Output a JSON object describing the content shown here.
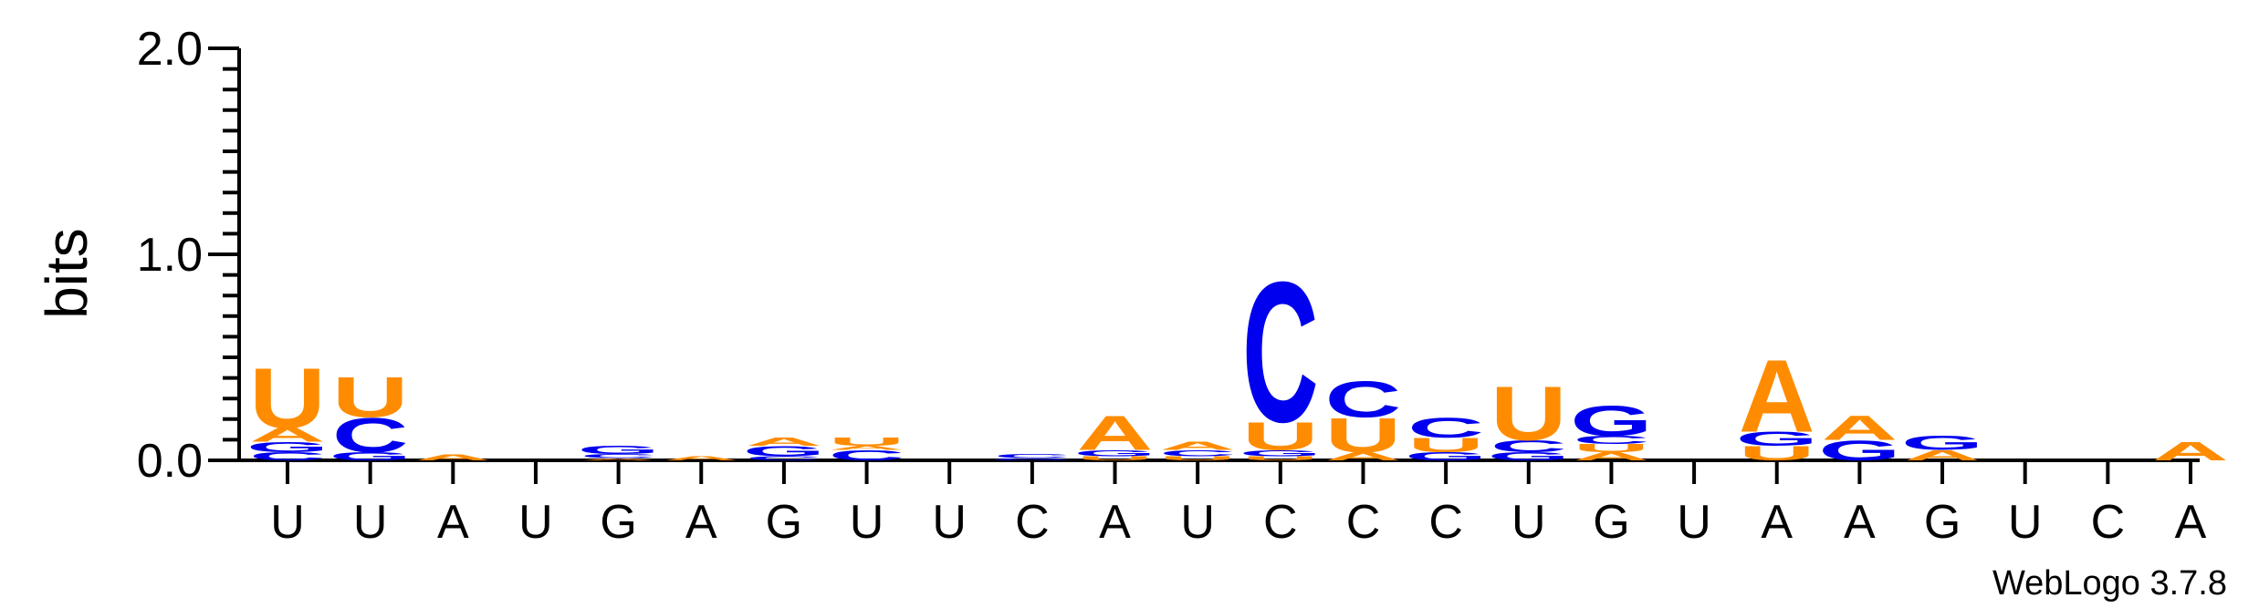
{
  "chart_data": {
    "type": "sequence-logo",
    "ylabel": "bits",
    "ylim": [
      0,
      2
    ],
    "y_ticks": [
      "0.0",
      "1.0",
      "2.0"
    ],
    "colors": {
      "U": "#FF8C00",
      "A": "#FF8C00",
      "C": "#0000EE",
      "G": "#0000EE"
    },
    "positions": [
      {
        "label": "U",
        "stack": [
          [
            "C",
            0.04
          ],
          [
            "G",
            0.05
          ],
          [
            "A",
            0.07
          ],
          [
            "U",
            0.3
          ]
        ]
      },
      {
        "label": "U",
        "stack": [
          [
            "G",
            0.04
          ],
          [
            "C",
            0.17
          ],
          [
            "U",
            0.2
          ]
        ]
      },
      {
        "label": "A",
        "stack": [
          [
            "A",
            0.03
          ]
        ]
      },
      {
        "label": "U",
        "stack": []
      },
      {
        "label": "G",
        "stack": [
          [
            "A",
            0.01
          ],
          [
            "C",
            0.02
          ],
          [
            "G",
            0.04
          ]
        ]
      },
      {
        "label": "A",
        "stack": [
          [
            "A",
            0.02
          ]
        ]
      },
      {
        "label": "G",
        "stack": [
          [
            "C",
            0.02
          ],
          [
            "G",
            0.05
          ],
          [
            "A",
            0.04
          ]
        ]
      },
      {
        "label": "U",
        "stack": [
          [
            "C",
            0.05
          ],
          [
            "A",
            0.02
          ],
          [
            "U",
            0.04
          ]
        ]
      },
      {
        "label": "U",
        "stack": []
      },
      {
        "label": "C",
        "stack": [
          [
            "G",
            0.01
          ],
          [
            "C",
            0.02
          ]
        ]
      },
      {
        "label": "A",
        "stack": [
          [
            "U",
            0.02
          ],
          [
            "G",
            0.03
          ],
          [
            "A",
            0.17
          ]
        ]
      },
      {
        "label": "U",
        "stack": [
          [
            "U",
            0.02
          ],
          [
            "C",
            0.03
          ],
          [
            "A",
            0.04
          ]
        ]
      },
      {
        "label": "C",
        "stack": [
          [
            "U",
            0.02
          ],
          [
            "G",
            0.03
          ],
          [
            "U",
            0.14
          ],
          [
            "C",
            0.7
          ]
        ]
      },
      {
        "label": "C",
        "stack": [
          [
            "A",
            0.04
          ],
          [
            "U",
            0.17
          ],
          [
            "C",
            0.18
          ]
        ]
      },
      {
        "label": "C",
        "stack": [
          [
            "G",
            0.04
          ],
          [
            "U",
            0.07
          ],
          [
            "C",
            0.1
          ]
        ]
      },
      {
        "label": "U",
        "stack": [
          [
            "G",
            0.04
          ],
          [
            "C",
            0.06
          ],
          [
            "U",
            0.27
          ]
        ]
      },
      {
        "label": "G",
        "stack": [
          [
            "A",
            0.04
          ],
          [
            "U",
            0.04
          ],
          [
            "C",
            0.04
          ],
          [
            "G",
            0.15
          ]
        ]
      },
      {
        "label": "U",
        "stack": []
      },
      {
        "label": "A",
        "stack": [
          [
            "U",
            0.07
          ],
          [
            "G",
            0.07
          ],
          [
            "A",
            0.36
          ]
        ]
      },
      {
        "label": "A",
        "stack": [
          [
            "G",
            0.1
          ],
          [
            "A",
            0.12
          ]
        ]
      },
      {
        "label": "G",
        "stack": [
          [
            "A",
            0.05
          ],
          [
            "G",
            0.07
          ]
        ]
      },
      {
        "label": "U",
        "stack": []
      },
      {
        "label": "C",
        "stack": []
      },
      {
        "label": "A",
        "stack": [
          [
            "A",
            0.09
          ]
        ]
      }
    ]
  },
  "footer": "WebLogo 3.7.8"
}
